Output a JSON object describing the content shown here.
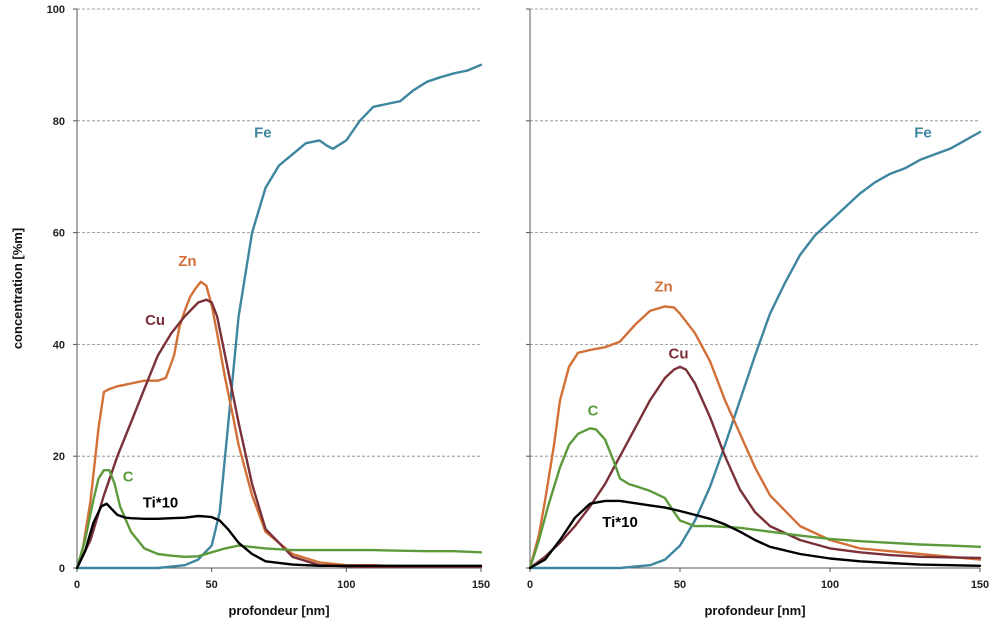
{
  "colors": {
    "Fe": "#3e86a0",
    "Zn": "#d27038",
    "Cu": "#7a3038",
    "C": "#5c9a3c",
    "Ti": "#000000",
    "grid": "#888888",
    "axis": "#555555"
  },
  "chart_data": [
    {
      "type": "line",
      "title": "",
      "xlabel": "profondeur [nm]",
      "ylabel": "concentration [%m]",
      "xlim": [
        0,
        150
      ],
      "ylim": [
        0,
        100
      ],
      "xticks": [
        "0",
        "50",
        "100",
        "150"
      ],
      "yticks": [
        "0",
        "20",
        "40",
        "60",
        "80",
        "100"
      ],
      "grid": "horizontal dashed",
      "series": [
        {
          "name": "Fe",
          "x": [
            0,
            30,
            40,
            45,
            50,
            53,
            56,
            60,
            65,
            70,
            75,
            80,
            85,
            90,
            93,
            95,
            100,
            105,
            110,
            115,
            120,
            125,
            130,
            135,
            140,
            145,
            150
          ],
          "values": [
            0,
            0,
            0.5,
            1.5,
            4,
            10,
            25,
            45,
            60,
            68,
            72,
            74,
            76,
            76.5,
            75.5,
            75,
            76.5,
            80,
            82.5,
            83,
            83.5,
            85.5,
            87,
            87.8,
            88.5,
            89,
            90
          ]
        },
        {
          "name": "Zn",
          "x": [
            0,
            2,
            5,
            8,
            10,
            12,
            15,
            20,
            25,
            30,
            33,
            36,
            38,
            40,
            42,
            44,
            46,
            48,
            50,
            52,
            55,
            58,
            60,
            65,
            70,
            80,
            90,
            100,
            110,
            120,
            130,
            140,
            150
          ],
          "values": [
            0,
            3,
            12,
            25,
            31.5,
            32,
            32.5,
            33,
            33.5,
            33.5,
            34,
            38,
            43,
            46,
            48.5,
            50,
            51.2,
            50.5,
            47,
            42,
            34,
            27,
            22,
            13,
            6.5,
            2.5,
            1,
            0.5,
            0.5,
            0.3,
            0.3,
            0.3,
            0.3
          ]
        },
        {
          "name": "Cu",
          "x": [
            0,
            5,
            10,
            15,
            20,
            25,
            30,
            35,
            40,
            45,
            48,
            50,
            52,
            55,
            60,
            65,
            70,
            80,
            90,
            100,
            110,
            120,
            150
          ],
          "values": [
            0,
            5,
            13,
            20,
            26,
            32,
            38,
            42,
            45,
            47.5,
            48,
            47.5,
            45,
            38,
            26,
            15,
            7,
            2,
            0.5,
            0.3,
            0.2,
            0.2,
            0.2
          ]
        },
        {
          "name": "C",
          "x": [
            0,
            3,
            6,
            8,
            10,
            12,
            14,
            16,
            20,
            25,
            30,
            35,
            40,
            45,
            50,
            55,
            60,
            70,
            80,
            100,
            110,
            120,
            130,
            140,
            150
          ],
          "values": [
            0,
            5,
            12,
            16,
            17.5,
            17.5,
            15,
            11,
            6.5,
            3.5,
            2.5,
            2.2,
            2,
            2.1,
            2.8,
            3.5,
            4,
            3.5,
            3.2,
            3.2,
            3.2,
            3.1,
            3,
            3,
            2.8
          ]
        },
        {
          "name": "Ti*10",
          "x": [
            0,
            3,
            6,
            9,
            11,
            13,
            15,
            18,
            20,
            25,
            30,
            35,
            40,
            45,
            48,
            50,
            53,
            56,
            60,
            65,
            70,
            80,
            90,
            100,
            120,
            150
          ],
          "values": [
            0,
            3,
            8,
            11,
            11.5,
            10.5,
            9.5,
            9,
            8.9,
            8.8,
            8.8,
            8.9,
            9,
            9.3,
            9.2,
            9.1,
            8.5,
            7,
            4.5,
            2.5,
            1.2,
            0.6,
            0.4,
            0.4,
            0.4,
            0.4
          ]
        }
      ],
      "labels": [
        {
          "text": "Fe",
          "x": 69,
          "y": 77,
          "series": "Fe"
        },
        {
          "text": "Zn",
          "x": 41,
          "y": 54,
          "series": "Zn"
        },
        {
          "text": "Cu",
          "x": 29,
          "y": 43.5,
          "series": "Cu"
        },
        {
          "text": "C",
          "x": 19,
          "y": 15.5,
          "series": "C"
        },
        {
          "text": "Ti*10",
          "x": 31,
          "y": 10.8,
          "series": "Ti*10"
        }
      ]
    },
    {
      "type": "line",
      "title": "",
      "xlabel": "profondeur [nm]",
      "ylabel": "",
      "xlim": [
        0,
        150
      ],
      "ylim": [
        0,
        100
      ],
      "xticks": [
        "0",
        "50",
        "100",
        "150"
      ],
      "yticks": [],
      "grid": "horizontal dashed",
      "series": [
        {
          "name": "Fe",
          "x": [
            0,
            30,
            40,
            45,
            50,
            55,
            60,
            65,
            70,
            75,
            80,
            85,
            90,
            95,
            100,
            105,
            110,
            115,
            120,
            125,
            130,
            135,
            140,
            145,
            150
          ],
          "values": [
            0,
            0,
            0.5,
            1.5,
            4,
            8.5,
            14.5,
            22,
            30,
            38,
            45.5,
            51,
            56,
            59.5,
            62,
            64.5,
            67,
            69,
            70.5,
            71.5,
            73,
            74,
            75,
            76.5,
            78
          ]
        },
        {
          "name": "Zn",
          "x": [
            0,
            3,
            5,
            8,
            10,
            13,
            16,
            20,
            25,
            30,
            35,
            40,
            45,
            48,
            50,
            55,
            60,
            65,
            70,
            75,
            80,
            90,
            100,
            110,
            120,
            130,
            140,
            150
          ],
          "values": [
            0,
            6,
            12,
            22,
            30,
            36,
            38.5,
            39,
            39.5,
            40.5,
            43.5,
            46,
            46.8,
            46.6,
            45.5,
            42,
            37,
            30,
            24,
            18,
            13,
            7.5,
            5,
            3.5,
            3,
            2.5,
            2,
            1.5
          ]
        },
        {
          "name": "Cu",
          "x": [
            0,
            5,
            10,
            15,
            20,
            25,
            30,
            35,
            40,
            45,
            48,
            50,
            52,
            55,
            60,
            65,
            70,
            75,
            80,
            90,
            100,
            110,
            120,
            130,
            150
          ],
          "values": [
            0,
            2,
            4.5,
            7.5,
            11,
            15,
            20,
            25,
            30,
            34,
            35.5,
            36,
            35.5,
            33,
            27,
            20,
            14,
            10,
            7.5,
            5,
            3.5,
            2.8,
            2.3,
            2,
            1.8
          ]
        },
        {
          "name": "C",
          "x": [
            0,
            3,
            6,
            10,
            13,
            16,
            20,
            22,
            25,
            28,
            30,
            33,
            36,
            40,
            45,
            48,
            50,
            55,
            60,
            70,
            80,
            90,
            100,
            110,
            120,
            130,
            140,
            150
          ],
          "values": [
            0,
            5,
            11,
            18,
            22,
            24,
            25,
            24.8,
            23,
            19,
            16,
            15,
            14.5,
            13.8,
            12.5,
            10,
            8.5,
            7.5,
            7.5,
            7.2,
            6.5,
            5.8,
            5.2,
            4.8,
            4.5,
            4.2,
            4,
            3.8
          ]
        },
        {
          "name": "Ti*10",
          "x": [
            0,
            5,
            10,
            15,
            20,
            25,
            30,
            35,
            40,
            45,
            50,
            55,
            60,
            65,
            70,
            75,
            80,
            90,
            100,
            110,
            120,
            130,
            150
          ],
          "values": [
            0,
            1.5,
            5,
            9,
            11.5,
            12,
            12,
            11.6,
            11.2,
            10.8,
            10.2,
            9.5,
            8.8,
            7.8,
            6.5,
            5,
            3.8,
            2.5,
            1.7,
            1.2,
            0.9,
            0.6,
            0.4
          ]
        }
      ],
      "labels": [
        {
          "text": "Fe",
          "x": 131,
          "y": 77,
          "series": "Fe"
        },
        {
          "text": "Zn",
          "x": 44.5,
          "y": 49.5,
          "series": "Zn"
        },
        {
          "text": "Cu",
          "x": 49.5,
          "y": 37.5,
          "series": "Cu"
        },
        {
          "text": "C",
          "x": 21,
          "y": 27.3,
          "series": "C"
        },
        {
          "text": "Ti*10",
          "x": 30,
          "y": 7.3,
          "series": "Ti*10"
        }
      ]
    }
  ]
}
